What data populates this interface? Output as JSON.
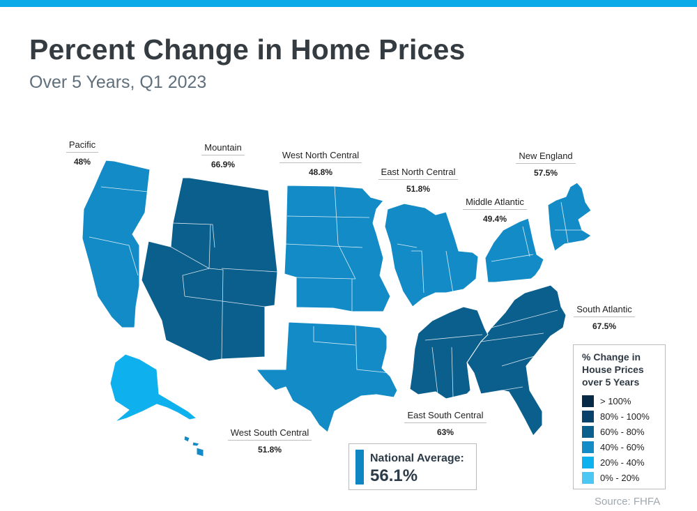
{
  "title": "Percent Change in Home Prices",
  "subtitle": "Over 5 Years, Q1 2023",
  "colors": {
    "top_bar": "#0aa9e8",
    "pacific": "#138bc6",
    "mountain": "#0b5f8d",
    "west_north_central": "#138bc6",
    "east_north_central": "#138bc6",
    "middle_atlantic": "#138bc6",
    "new_england": "#138bc6",
    "south_atlantic": "#0b5f8d",
    "east_south_central": "#0b5f8d",
    "west_south_central": "#138bc6",
    "alaska": "#0fb0ee",
    "hawaii": "#138bc6"
  },
  "regions": [
    {
      "name": "Pacific",
      "value": "48%"
    },
    {
      "name": "Mountain",
      "value": "66.9%"
    },
    {
      "name": "West North Central",
      "value": "48.8%"
    },
    {
      "name": "East North Central",
      "value": "51.8%"
    },
    {
      "name": "Middle Atlantic",
      "value": "49.4%"
    },
    {
      "name": "New England",
      "value": "57.5%"
    },
    {
      "name": "South Atlantic",
      "value": "67.5%"
    },
    {
      "name": "East South Central",
      "value": "63%"
    },
    {
      "name": "West South Central",
      "value": "51.8%"
    }
  ],
  "legend": {
    "title_lines": [
      "% Change in",
      "House Prices",
      "over 5 Years"
    ],
    "items": [
      {
        "label": "> 100%",
        "color": "#062a45"
      },
      {
        "label": "80% - 100%",
        "color": "#08426a"
      },
      {
        "label": "60% - 80%",
        "color": "#0b5f8d"
      },
      {
        "label": "40% - 60%",
        "color": "#138bc6"
      },
      {
        "label": "20% - 40%",
        "color": "#0fb0ee"
      },
      {
        "label": "0% - 20%",
        "color": "#4cc7f4"
      }
    ]
  },
  "national_average": {
    "label": "National Average:",
    "value": "56.1%"
  },
  "source": "Source: FHFA"
}
